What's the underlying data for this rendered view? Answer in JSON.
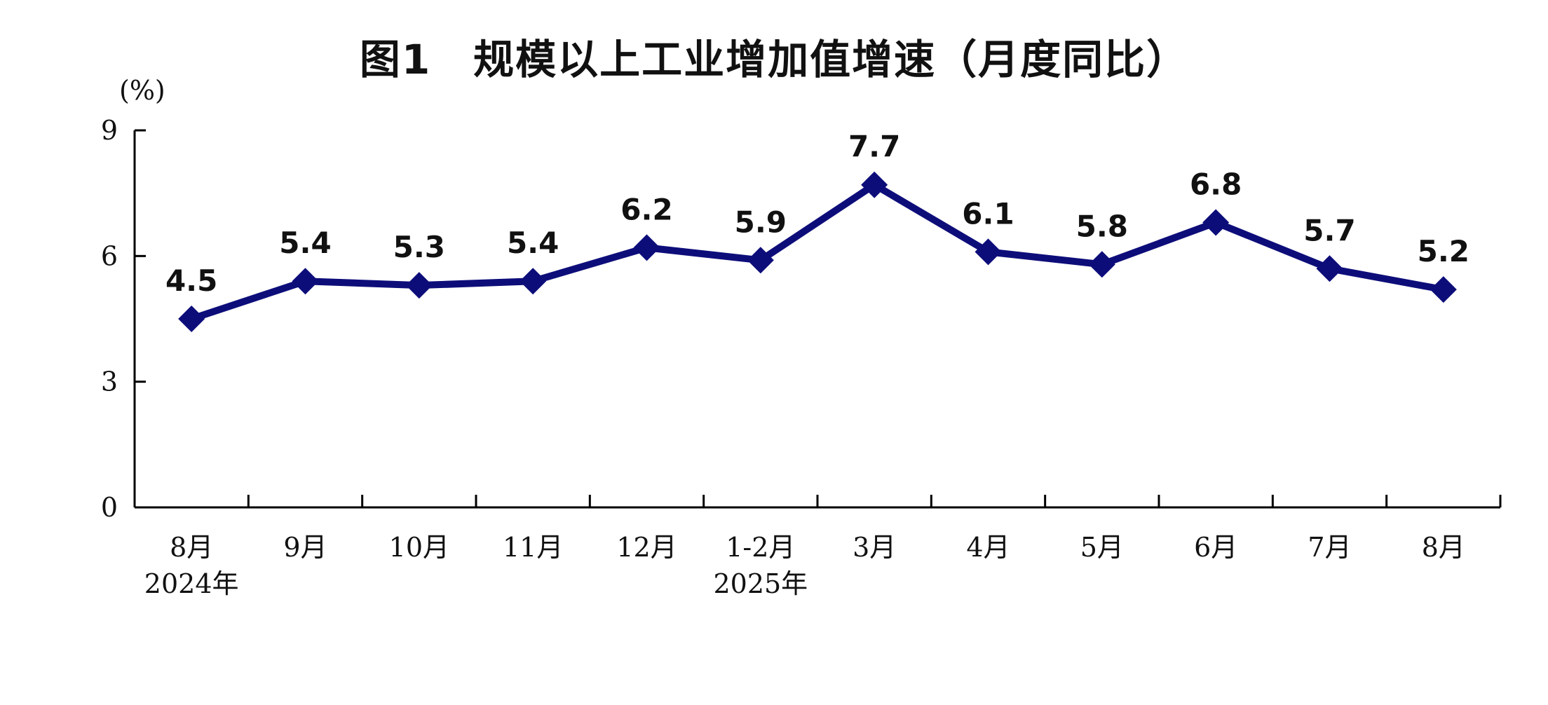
{
  "chart_data": {
    "type": "line",
    "title": "图1　规模以上工业增加值增速（月度同比）",
    "ylabel": "(%)",
    "ylim": [
      0,
      9
    ],
    "yticks": [
      0,
      3,
      6,
      9
    ],
    "grid": false,
    "legend": "none",
    "categories": [
      "8月",
      "9月",
      "10月",
      "11月",
      "12月",
      "1-2月",
      "3月",
      "4月",
      "5月",
      "6月",
      "7月",
      "8月"
    ],
    "year_labels": [
      "2024年",
      "",
      "",
      "",
      "",
      "2025年",
      "",
      "",
      "",
      "",
      "",
      ""
    ],
    "series": [
      {
        "values": [
          4.5,
          5.4,
          5.3,
          5.4,
          6.2,
          5.9,
          7.7,
          6.1,
          5.8,
          6.8,
          5.7,
          5.2
        ],
        "color": "#0d0d7a"
      }
    ]
  }
}
